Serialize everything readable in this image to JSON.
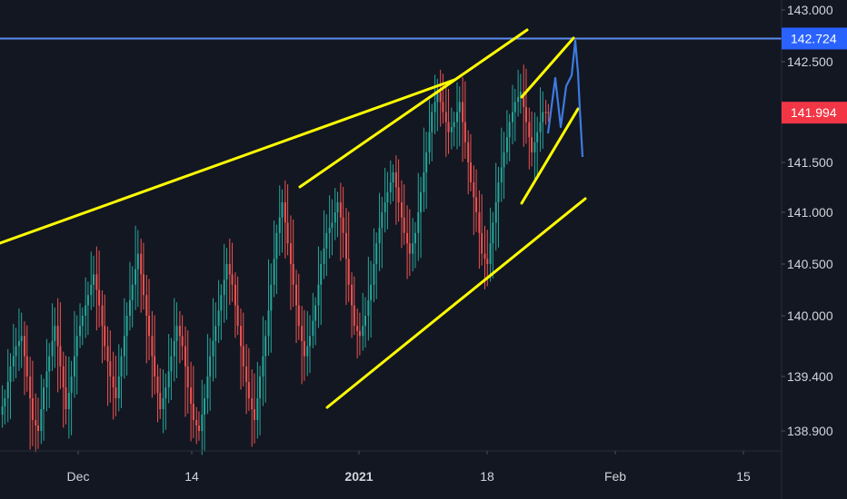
{
  "chart_data": {
    "type": "candlestick",
    "title": "",
    "xlabel": "",
    "ylabel": "",
    "x_ticks": [
      "Dec",
      "14",
      "2021",
      "18",
      "Feb",
      "15"
    ],
    "y_ticks": [
      143.0,
      142.5,
      141.5,
      141.0,
      140.5,
      140.0,
      139.4,
      138.9
    ],
    "y_tick_labels": [
      "143.000",
      "142.500",
      "141.500",
      "141.000",
      "140.500",
      "140.000",
      "139.400",
      "138.900"
    ],
    "ylim": [
      138.75,
      143.1
    ],
    "grid": false,
    "price_tags": [
      {
        "label": "142.724",
        "value": 142.724,
        "color": "#2962ff",
        "role": "resistance-level"
      },
      {
        "label": "141.994",
        "value": 141.994,
        "color": "#f23645",
        "role": "last-price"
      }
    ],
    "colors": {
      "up_candle": "#26a69a",
      "down_candle": "#ef5350",
      "trendline": "#ffff00",
      "projection": "#3d7be0",
      "horizontal_level": "#5b8def",
      "background": "#131722",
      "axis_text": "#d1d4dc"
    },
    "series": [
      {
        "name": "",
        "ohlc_note": "approximate closes read from chart",
        "closes": [
          139.2,
          139.5,
          139.7,
          139.8,
          139.4,
          139.0,
          138.9,
          139.3,
          139.6,
          139.9,
          139.5,
          139.1,
          139.4,
          139.8,
          140.0,
          140.2,
          140.4,
          140.1,
          139.7,
          139.4,
          139.2,
          139.6,
          140.0,
          140.3,
          140.6,
          140.2,
          139.8,
          139.4,
          139.1,
          139.3,
          139.6,
          139.9,
          139.7,
          139.3,
          139.0,
          138.9,
          139.2,
          139.6,
          139.9,
          140.2,
          140.5,
          140.3,
          139.9,
          139.5,
          139.2,
          139.0,
          139.4,
          139.8,
          140.3,
          140.8,
          141.1,
          140.7,
          140.3,
          139.9,
          139.6,
          139.8,
          140.1,
          140.5,
          140.8,
          140.9,
          141.1,
          140.8,
          140.3,
          139.9,
          139.8,
          140.0,
          140.3,
          140.7,
          141.0,
          141.2,
          141.4,
          141.1,
          140.8,
          140.6,
          140.8,
          141.2,
          141.6,
          142.0,
          142.2,
          142.0,
          141.8,
          141.9,
          142.1,
          141.7,
          141.3,
          141.0,
          140.6,
          140.5,
          140.9,
          141.3,
          141.6,
          141.9,
          142.1,
          142.2,
          141.9,
          141.6,
          141.8,
          142.0,
          141.994
        ]
      }
    ]
  }
}
